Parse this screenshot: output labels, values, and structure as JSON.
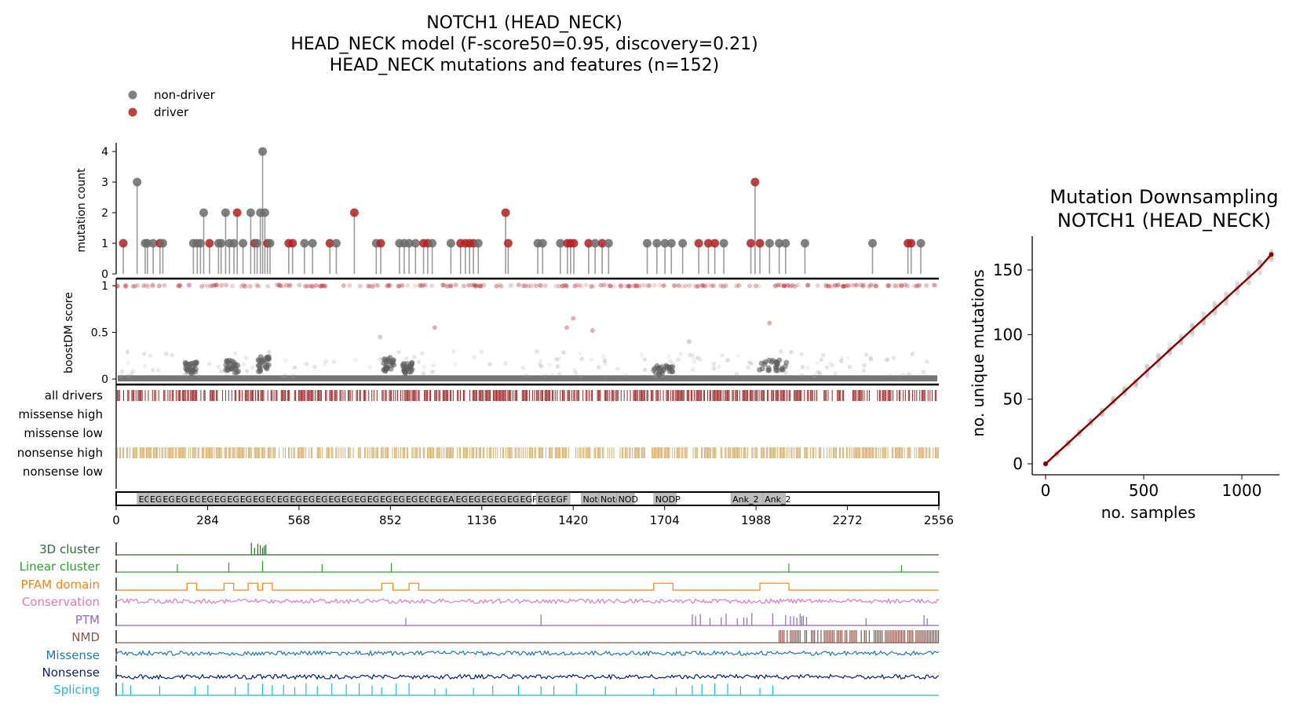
{
  "chart_data": [
    {
      "type": "scatter",
      "subtype": "lollipop",
      "title": [
        "NOTCH1 (HEAD_NECK)",
        "HEAD_NECK model (F-score50=0.95, discovery=0.21)",
        "HEAD_NECK mutations and features (n=152)"
      ],
      "legend": [
        "non-driver",
        "driver"
      ],
      "colors": {
        "non-driver": "#6b6b6b",
        "driver": "#b22222"
      },
      "ylabel": "mutation count",
      "ylim": [
        0,
        4
      ],
      "yticks": [
        "0",
        "1",
        "2",
        "3",
        "4"
      ],
      "x_range": [
        0,
        2556
      ],
      "points": [
        {
          "x": 22,
          "y": 1,
          "driver": true
        },
        {
          "x": 65,
          "y": 3,
          "driver": false
        },
        {
          "x": 90,
          "y": 1,
          "driver": false
        },
        {
          "x": 97,
          "y": 1,
          "driver": false
        },
        {
          "x": 115,
          "y": 1,
          "driver": false
        },
        {
          "x": 136,
          "y": 1,
          "driver": true
        },
        {
          "x": 145,
          "y": 1,
          "driver": false
        },
        {
          "x": 240,
          "y": 1,
          "driver": false
        },
        {
          "x": 252,
          "y": 1,
          "driver": false
        },
        {
          "x": 262,
          "y": 1,
          "driver": false
        },
        {
          "x": 272,
          "y": 2,
          "driver": false
        },
        {
          "x": 290,
          "y": 1,
          "driver": true
        },
        {
          "x": 318,
          "y": 1,
          "driver": false
        },
        {
          "x": 326,
          "y": 1,
          "driver": false
        },
        {
          "x": 340,
          "y": 2,
          "driver": false
        },
        {
          "x": 352,
          "y": 1,
          "driver": false
        },
        {
          "x": 366,
          "y": 1,
          "driver": false
        },
        {
          "x": 376,
          "y": 2,
          "driver": true
        },
        {
          "x": 394,
          "y": 1,
          "driver": false
        },
        {
          "x": 418,
          "y": 2,
          "driver": false
        },
        {
          "x": 430,
          "y": 1,
          "driver": true
        },
        {
          "x": 438,
          "y": 1,
          "driver": false
        },
        {
          "x": 448,
          "y": 2,
          "driver": false
        },
        {
          "x": 455,
          "y": 4,
          "driver": false
        },
        {
          "x": 462,
          "y": 2,
          "driver": false
        },
        {
          "x": 470,
          "y": 1,
          "driver": true
        },
        {
          "x": 478,
          "y": 1,
          "driver": false
        },
        {
          "x": 536,
          "y": 1,
          "driver": true
        },
        {
          "x": 548,
          "y": 1,
          "driver": true
        },
        {
          "x": 585,
          "y": 1,
          "driver": false
        },
        {
          "x": 610,
          "y": 1,
          "driver": false
        },
        {
          "x": 664,
          "y": 1,
          "driver": true
        },
        {
          "x": 684,
          "y": 1,
          "driver": false
        },
        {
          "x": 740,
          "y": 2,
          "driver": true
        },
        {
          "x": 808,
          "y": 1,
          "driver": false
        },
        {
          "x": 822,
          "y": 1,
          "driver": true
        },
        {
          "x": 880,
          "y": 1,
          "driver": false
        },
        {
          "x": 895,
          "y": 1,
          "driver": false
        },
        {
          "x": 910,
          "y": 1,
          "driver": false
        },
        {
          "x": 930,
          "y": 1,
          "driver": false
        },
        {
          "x": 955,
          "y": 1,
          "driver": true
        },
        {
          "x": 968,
          "y": 1,
          "driver": true
        },
        {
          "x": 982,
          "y": 1,
          "driver": false
        },
        {
          "x": 1040,
          "y": 1,
          "driver": false
        },
        {
          "x": 1070,
          "y": 1,
          "driver": true
        },
        {
          "x": 1085,
          "y": 1,
          "driver": true
        },
        {
          "x": 1098,
          "y": 1,
          "driver": true
        },
        {
          "x": 1110,
          "y": 1,
          "driver": true
        },
        {
          "x": 1125,
          "y": 1,
          "driver": false
        },
        {
          "x": 1210,
          "y": 2,
          "driver": true
        },
        {
          "x": 1218,
          "y": 1,
          "driver": true
        },
        {
          "x": 1310,
          "y": 1,
          "driver": false
        },
        {
          "x": 1325,
          "y": 1,
          "driver": false
        },
        {
          "x": 1380,
          "y": 1,
          "driver": false
        },
        {
          "x": 1402,
          "y": 1,
          "driver": true
        },
        {
          "x": 1412,
          "y": 1,
          "driver": true
        },
        {
          "x": 1422,
          "y": 1,
          "driver": true
        },
        {
          "x": 1468,
          "y": 1,
          "driver": true
        },
        {
          "x": 1488,
          "y": 1,
          "driver": false
        },
        {
          "x": 1510,
          "y": 1,
          "driver": true
        },
        {
          "x": 1530,
          "y": 1,
          "driver": false
        },
        {
          "x": 1650,
          "y": 1,
          "driver": false
        },
        {
          "x": 1680,
          "y": 1,
          "driver": false
        },
        {
          "x": 1705,
          "y": 1,
          "driver": false
        },
        {
          "x": 1725,
          "y": 1,
          "driver": false
        },
        {
          "x": 1760,
          "y": 1,
          "driver": false
        },
        {
          "x": 1810,
          "y": 1,
          "driver": true
        },
        {
          "x": 1840,
          "y": 1,
          "driver": true
        },
        {
          "x": 1860,
          "y": 1,
          "driver": true
        },
        {
          "x": 1888,
          "y": 1,
          "driver": false
        },
        {
          "x": 1972,
          "y": 1,
          "driver": true
        },
        {
          "x": 1985,
          "y": 3,
          "driver": true
        },
        {
          "x": 2000,
          "y": 1,
          "driver": true
        },
        {
          "x": 2030,
          "y": 1,
          "driver": false
        },
        {
          "x": 2060,
          "y": 1,
          "driver": false
        },
        {
          "x": 2080,
          "y": 1,
          "driver": false
        },
        {
          "x": 2140,
          "y": 1,
          "driver": false
        },
        {
          "x": 2350,
          "y": 1,
          "driver": false
        },
        {
          "x": 2460,
          "y": 1,
          "driver": true
        },
        {
          "x": 2470,
          "y": 1,
          "driver": true
        },
        {
          "x": 2500,
          "y": 1,
          "driver": false
        }
      ]
    },
    {
      "type": "scatter",
      "ylabel": "boostDM score",
      "ylim": [
        0,
        1
      ],
      "yticks": [
        "0",
        "0.5",
        "1"
      ],
      "x_range": [
        0,
        2556
      ],
      "description_levels": {
        "driver_score": 1.0,
        "baseline": 0.02
      },
      "clusters": [
        {
          "x_start": 215,
          "x_end": 250,
          "score": 0.15
        },
        {
          "x_start": 340,
          "x_end": 380,
          "score": 0.17
        },
        {
          "x_start": 440,
          "x_end": 475,
          "score": 0.2
        },
        {
          "x_start": 830,
          "x_end": 870,
          "score": 0.2
        },
        {
          "x_start": 890,
          "x_end": 920,
          "score": 0.15
        },
        {
          "x_start": 1670,
          "x_end": 1730,
          "score": 0.12
        },
        {
          "x_start": 1990,
          "x_end": 2090,
          "score": 0.17
        }
      ],
      "outliers": [
        {
          "x": 1420,
          "y": 0.65,
          "driver": true
        },
        {
          "x": 1400,
          "y": 0.55,
          "driver": true
        },
        {
          "x": 1480,
          "y": 0.52,
          "driver": true
        },
        {
          "x": 990,
          "y": 0.55,
          "driver": true
        },
        {
          "x": 2030,
          "y": 0.6,
          "driver": true
        },
        {
          "x": 820,
          "y": 0.45,
          "driver": false
        },
        {
          "x": 1780,
          "y": 0.4,
          "driver": false
        }
      ]
    },
    {
      "type": "table",
      "subtype": "barcode",
      "rows": [
        "all drivers",
        "missense high",
        "missense low",
        "nonsense high",
        "nonsense low"
      ],
      "row_colors": {
        "all drivers": "#8b0000",
        "nonsense high": "#d4a150"
      },
      "x_range": [
        0,
        2556
      ]
    },
    {
      "type": "bar",
      "subtype": "domain-track",
      "x_range": [
        0,
        2556
      ],
      "xticks": [
        "0",
        "284",
        "568",
        "852",
        "1136",
        "1420",
        "1704",
        "1988",
        "2272",
        "2556"
      ],
      "domains": [
        {
          "start": 65,
          "end": 100,
          "label": "EGF"
        },
        {
          "start": 100,
          "end": 140,
          "label": "EGF"
        },
        {
          "start": 140,
          "end": 180,
          "label": "EGF"
        },
        {
          "start": 180,
          "end": 222,
          "label": "EGF"
        },
        {
          "start": 222,
          "end": 260,
          "label": "EGF"
        },
        {
          "start": 260,
          "end": 300,
          "label": "EGF"
        },
        {
          "start": 300,
          "end": 340,
          "label": "EGF_CA"
        },
        {
          "start": 340,
          "end": 380,
          "label": "EGF"
        },
        {
          "start": 380,
          "end": 420,
          "label": "EGF"
        },
        {
          "start": 420,
          "end": 460,
          "label": "EGF"
        },
        {
          "start": 460,
          "end": 495,
          "label": "EGF"
        },
        {
          "start": 495,
          "end": 535,
          "label": "EGF"
        },
        {
          "start": 535,
          "end": 575,
          "label": "EGF"
        },
        {
          "start": 575,
          "end": 615,
          "label": "EGF"
        },
        {
          "start": 615,
          "end": 655,
          "label": "EGF"
        },
        {
          "start": 655,
          "end": 695,
          "label": "EGF"
        },
        {
          "start": 695,
          "end": 735,
          "label": "EGF"
        },
        {
          "start": 735,
          "end": 775,
          "label": "EGF"
        },
        {
          "start": 775,
          "end": 815,
          "label": "EGF"
        },
        {
          "start": 815,
          "end": 855,
          "label": "EGF"
        },
        {
          "start": 855,
          "end": 895,
          "label": "EGF"
        },
        {
          "start": 895,
          "end": 935,
          "label": "EGF"
        },
        {
          "start": 935,
          "end": 970,
          "label": "EGF"
        },
        {
          "start": 970,
          "end": 1010,
          "label": "EGF"
        },
        {
          "start": 1010,
          "end": 1050,
          "label": "EAh"
        },
        {
          "start": 1050,
          "end": 1090,
          "label": "EGF"
        },
        {
          "start": 1090,
          "end": 1130,
          "label": "EGF"
        },
        {
          "start": 1130,
          "end": 1170,
          "label": "EGF"
        },
        {
          "start": 1170,
          "end": 1210,
          "label": "EGF"
        },
        {
          "start": 1210,
          "end": 1250,
          "label": "EGF"
        },
        {
          "start": 1250,
          "end": 1290,
          "label": "EGF"
        },
        {
          "start": 1305,
          "end": 1345,
          "label": "EGF"
        },
        {
          "start": 1345,
          "end": 1410,
          "label": "EGF"
        },
        {
          "start": 1445,
          "end": 1500,
          "label": "Notch"
        },
        {
          "start": 1500,
          "end": 1555,
          "label": "Notch"
        },
        {
          "start": 1555,
          "end": 1610,
          "label": "NOD"
        },
        {
          "start": 1670,
          "end": 1740,
          "label": "NODP"
        },
        {
          "start": 1910,
          "end": 2010,
          "label": "Ank_2"
        },
        {
          "start": 2010,
          "end": 2080,
          "label": "Ank_2"
        }
      ]
    },
    {
      "type": "line",
      "subtype": "feature-tracks",
      "x_range": [
        0,
        2556
      ],
      "tracks": [
        {
          "name": "3D cluster",
          "color": "#2e6b2e",
          "peaks": [
            420,
            430,
            440,
            448,
            455,
            460,
            465
          ]
        },
        {
          "name": "Linear cluster",
          "color": "#2ca02c",
          "peaks": [
            190,
            350,
            455,
            640,
            855,
            2090,
            2440
          ]
        },
        {
          "name": "PFAM domain",
          "color": "#ff7f0e",
          "blocks": [
            [
              220,
              250
            ],
            [
              335,
              365
            ],
            [
              410,
              440
            ],
            [
              455,
              485
            ],
            [
              825,
              860
            ],
            [
              910,
              940
            ],
            [
              1670,
              1730
            ],
            [
              2000,
              2090
            ]
          ]
        },
        {
          "name": "Conservation",
          "color": "#e377c2",
          "level": 0.5
        },
        {
          "name": "PTM",
          "color": "#9467bd",
          "peaks": [
            900,
            1320,
            1790,
            1800,
            1815,
            1845,
            1880,
            1895,
            1930,
            1950,
            1960,
            1975,
            2040,
            2080,
            2095,
            2105,
            2115,
            2125,
            2130,
            2135,
            2145,
            2330,
            2510,
            2520
          ]
        },
        {
          "name": "NMD",
          "color": "#8c564b",
          "region": [
            2060,
            2556
          ]
        },
        {
          "name": "Missense",
          "color": "#1f77b4",
          "level": 0.6
        },
        {
          "name": "Nonsense",
          "color": "#0b1f6b",
          "level": 0.1
        },
        {
          "name": "Splicing",
          "color": "#17becf",
          "peaks": [
            20,
            45,
            135,
            245,
            285,
            370,
            410,
            455,
            485,
            520,
            555,
            590,
            625,
            670,
            715,
            755,
            795,
            825,
            870,
            910,
            990,
            1025,
            1110,
            1170,
            1250,
            1320,
            1360,
            1430,
            1520,
            1670,
            1740,
            1790,
            1820,
            1860,
            1900,
            1940,
            2000,
            2040
          ]
        }
      ]
    },
    {
      "type": "scatter",
      "title": [
        "Mutation Downsampling",
        "NOTCH1 (HEAD_NECK)"
      ],
      "xlabel": "no. samples",
      "ylabel": "no. unique mutations",
      "xlim": [
        0,
        1150
      ],
      "ylim": [
        0,
        165
      ],
      "xticks": [
        "0",
        "500",
        "1000"
      ],
      "yticks": [
        "0",
        "50",
        "100",
        "150"
      ],
      "x": [
        0,
        57,
        115,
        172,
        230,
        287,
        345,
        402,
        460,
        517,
        575,
        632,
        690,
        747,
        805,
        862,
        920,
        977,
        1035,
        1092,
        1150
      ],
      "y": [
        0,
        8,
        16,
        24,
        32,
        40,
        48,
        56,
        64,
        72,
        80,
        88,
        96,
        104,
        112,
        120,
        128,
        136,
        144,
        152,
        162
      ],
      "line_color": "#8b0000"
    }
  ]
}
